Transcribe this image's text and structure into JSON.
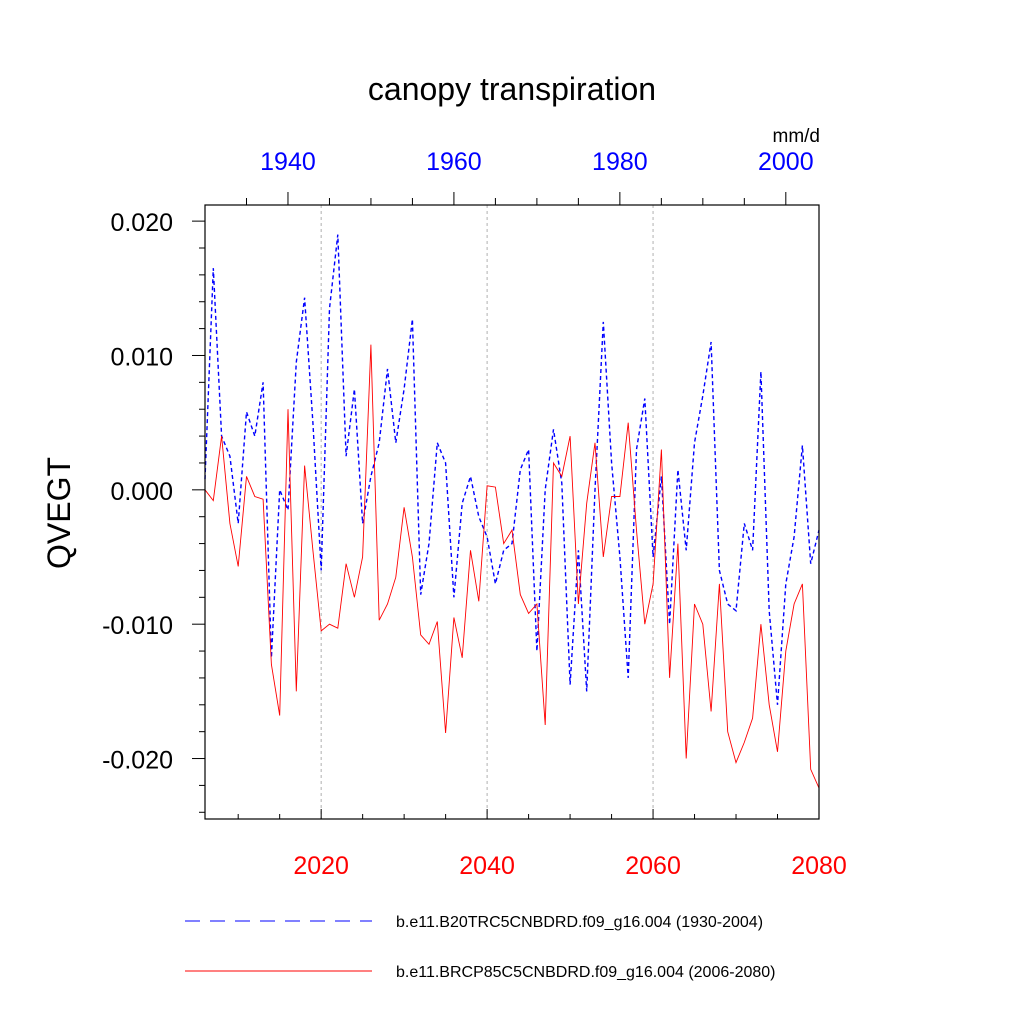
{
  "chart_data": {
    "type": "line",
    "title": "canopy transpiration",
    "ylabel": "QVEGT",
    "units": "mm/d",
    "ylim": [
      -0.0245,
      0.0212
    ],
    "yticks": [
      {
        "value": 0.02,
        "label": "0.020"
      },
      {
        "value": 0.01,
        "label": "0.010"
      },
      {
        "value": 0.0,
        "label": "0.000"
      },
      {
        "value": -0.01,
        "label": "-0.010"
      },
      {
        "value": -0.02,
        "label": "-0.020"
      }
    ],
    "top_axis": {
      "color": "#0000ff",
      "xlim": [
        1930,
        2004
      ],
      "ticks": [
        {
          "value": 1940,
          "label": "1940"
        },
        {
          "value": 1960,
          "label": "1960"
        },
        {
          "value": 1980,
          "label": "1980"
        },
        {
          "value": 2000,
          "label": "2000"
        }
      ]
    },
    "bottom_axis": {
      "color": "#ff0000",
      "xlim": [
        2006,
        2080
      ],
      "ticks": [
        {
          "value": 2020,
          "label": "2020"
        },
        {
          "value": 2040,
          "label": "2040"
        },
        {
          "value": 2060,
          "label": "2060"
        },
        {
          "value": 2080,
          "label": "2080"
        }
      ]
    },
    "grid": "vertical dashed at 2020, 2040, 2060",
    "legend_position": "bottom",
    "series": [
      {
        "name": "b.e11.B20TRC5CNBDRD.f09_g16.004 (1930-2004)",
        "color": "#0000ff",
        "style": "dashed",
        "axis": "top",
        "x_start": 1930,
        "values": [
          0.0008,
          0.0165,
          0.004,
          0.0025,
          -0.0025,
          0.0058,
          0.004,
          0.008,
          -0.0125,
          0.0,
          -0.0015,
          0.0095,
          0.0143,
          0.005,
          -0.006,
          0.0135,
          0.019,
          0.0025,
          0.0075,
          -0.0025,
          0.001,
          0.0035,
          0.009,
          0.0035,
          0.0075,
          0.0127,
          -0.0078,
          -0.004,
          0.0035,
          0.002,
          -0.008,
          -0.001,
          0.001,
          -0.002,
          -0.0035,
          -0.007,
          -0.0045,
          -0.004,
          0.0015,
          0.003,
          -0.012,
          0.0,
          0.0045,
          0.0005,
          -0.0145,
          -0.0045,
          -0.015,
          0.0,
          0.0125,
          0.002,
          -0.005,
          -0.014,
          0.003,
          0.0068,
          -0.005,
          0.001,
          -0.01,
          0.0015,
          -0.0045,
          0.0035,
          0.007,
          0.011,
          -0.006,
          -0.0085,
          -0.009,
          -0.0025,
          -0.0045,
          0.0088,
          -0.009,
          -0.016,
          -0.007,
          -0.0035,
          0.0033,
          -0.0055,
          -0.003
        ]
      },
      {
        "name": "b.e11.BRCP85C5CNBDRD.f09_g16.004 (2006-2080)",
        "color": "#ff0000",
        "style": "solid",
        "axis": "bottom",
        "x_start": 2006,
        "values": [
          0.0,
          -0.0008,
          0.004,
          -0.0025,
          -0.0057,
          0.001,
          -0.0005,
          -0.0007,
          -0.013,
          -0.0168,
          0.006,
          -0.015,
          0.0018,
          -0.0045,
          -0.0105,
          -0.01,
          -0.0103,
          -0.0055,
          -0.008,
          -0.005,
          0.0108,
          -0.0097,
          -0.0085,
          -0.0065,
          -0.0013,
          -0.005,
          -0.0108,
          -0.0115,
          -0.0098,
          -0.0181,
          -0.0095,
          -0.0125,
          -0.0045,
          -0.0083,
          0.0003,
          0.0002,
          -0.004,
          -0.003,
          -0.0078,
          -0.0092,
          -0.0085,
          -0.0175,
          0.002,
          0.001,
          0.004,
          -0.0085,
          -0.001,
          0.0035,
          -0.005,
          -0.0005,
          -0.0005,
          0.005,
          -0.003,
          -0.01,
          -0.007,
          0.003,
          -0.014,
          -0.004,
          -0.02,
          -0.0085,
          -0.01,
          -0.0165,
          -0.007,
          -0.018,
          -0.0203,
          -0.0188,
          -0.017,
          -0.01,
          -0.016,
          -0.0195,
          -0.012,
          -0.0085,
          -0.007,
          -0.0208,
          -0.0222
        ]
      }
    ]
  }
}
